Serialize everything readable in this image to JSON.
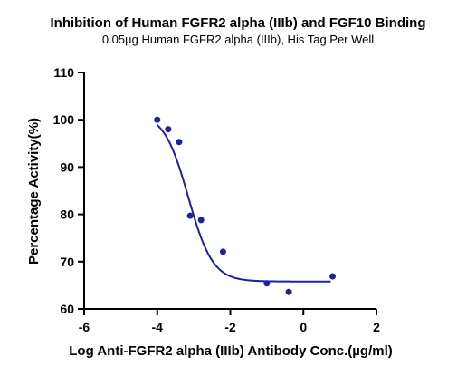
{
  "chart_data": {
    "type": "scatter",
    "title": "Inhibition of Human FGFR2 alpha (IIIb) and  FGF10 Binding",
    "subtitle": "0.05µg Human FGFR2 alpha (IIIb), His Tag Per Well",
    "xlabel": "Log Anti-FGFR2 alpha (IIIb) Antibody Conc.(µg/ml)",
    "ylabel": "Percentage Activity(%)",
    "xlim": [
      -6,
      2
    ],
    "ylim": [
      60,
      110
    ],
    "x_ticks": [
      "-6",
      "-4",
      "-2",
      "0",
      "2"
    ],
    "y_ticks": [
      "60",
      "70",
      "80",
      "90",
      "100",
      "110"
    ],
    "grid": false,
    "series": [
      {
        "points": [
          {
            "x": -4.0,
            "y": 100.0
          },
          {
            "x": -3.7,
            "y": 98.0
          },
          {
            "x": -3.4,
            "y": 95.3
          },
          {
            "x": -3.1,
            "y": 79.7
          },
          {
            "x": -2.8,
            "y": 78.8
          },
          {
            "x": -2.2,
            "y": 72.1
          },
          {
            "x": -1.0,
            "y": 65.4
          },
          {
            "x": -0.4,
            "y": 63.6
          },
          {
            "x": 0.8,
            "y": 66.9
          }
        ],
        "fit": {
          "model": "4PL",
          "top": 101.5,
          "bottom": 65.8,
          "log_ic50": -3.15,
          "hill_slope": -1.3,
          "x_range": [
            -4.0,
            0.75
          ]
        },
        "color": "#1f1fa0"
      }
    ]
  }
}
